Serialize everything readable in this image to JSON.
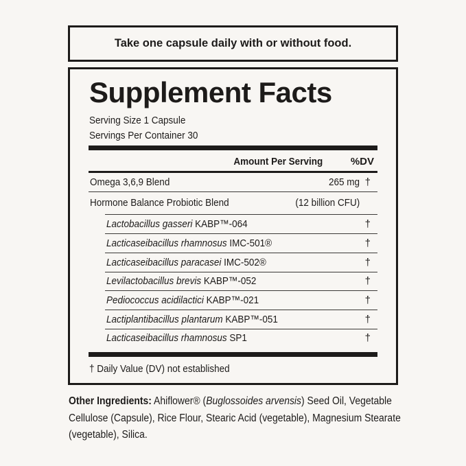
{
  "directions": "Take one capsule daily with or without food.",
  "facts": {
    "title": "Supplement Facts",
    "serving_size": "Serving Size 1 Capsule",
    "servings_per_container": "Servings Per Container 30",
    "header_amount": "Amount Per Serving",
    "header_dv": "%DV",
    "rows": [
      {
        "name": "Omega 3,6,9 Blend",
        "amount": "265 mg",
        "dv": "†"
      },
      {
        "name": "Hormone Balance Probiotic Blend",
        "amount": "(12 billion CFU)",
        "dv": ""
      }
    ],
    "strains": [
      {
        "species": "Lactobacillus gasseri",
        "strain": " KABP™-064",
        "dv": "†"
      },
      {
        "species": "Lacticaseibacillus rhamnosus",
        "strain": " IMC-501®",
        "dv": "†"
      },
      {
        "species": "Lacticaseibacillus paracasei",
        "strain": " IMC-502®",
        "dv": "†"
      },
      {
        "species": "Levilactobacillus brevis",
        "strain": " KABP™-052",
        "dv": "†"
      },
      {
        "species": "Pediococcus acidilactici",
        "strain": " KABP™-021",
        "dv": "†"
      },
      {
        "species": "Lactiplantibacillus plantarum",
        "strain": " KABP™-051",
        "dv": "†"
      },
      {
        "species": "Lacticaseibacillus rhamnosus",
        "strain": " SP1",
        "dv": "†"
      }
    ],
    "footnote": "† Daily Value (DV) not established"
  },
  "other_ingredients": {
    "label": "Other Ingredients:",
    "part1": " Ahiflower® (",
    "italic": "Buglossoides arvensis",
    "part2": ") Seed Oil, Vegetable Cellulose (Capsule), Rice Flour, Stearic Acid (vegetable), Magnesium Stearate (vegetable), Silica."
  }
}
